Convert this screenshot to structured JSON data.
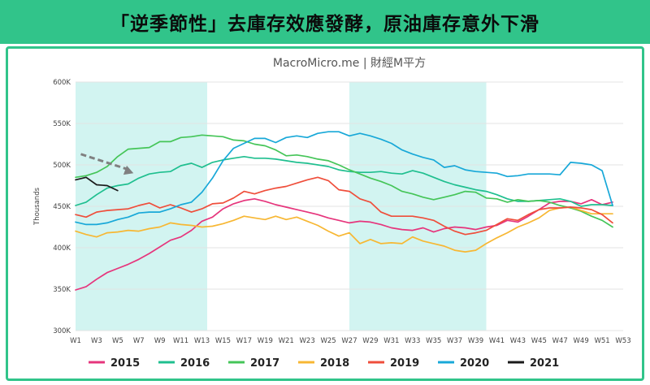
{
  "banner": {
    "title": "「逆季節性」去庫存效應發酵，原油庫存意外下滑",
    "background": "#31c48a"
  },
  "chart_data": {
    "type": "line",
    "source": "MacroMicro.me | 財經M平方",
    "ylabel": "Thousands",
    "xlabel": "",
    "ylim": [
      300,
      600
    ],
    "yticks": [
      300,
      350,
      400,
      450,
      500,
      550,
      600
    ],
    "ytick_labels": [
      "300K",
      "350K",
      "400K",
      "450K",
      "500K",
      "550K",
      "600K"
    ],
    "xlim": [
      1,
      53
    ],
    "xtick_labels": [
      "W1",
      "W3",
      "W5",
      "W7",
      "W9",
      "W11",
      "W13",
      "W15",
      "W17",
      "W19",
      "W21",
      "W23",
      "W25",
      "W27",
      "W29",
      "W31",
      "W33",
      "W35",
      "W37",
      "W39",
      "W41",
      "W43",
      "W45",
      "W47",
      "W49",
      "W51",
      "W53"
    ],
    "shaded_week_ranges": [
      [
        1,
        13.5
      ],
      [
        27,
        40
      ]
    ],
    "shade_color": "#d2f4f1",
    "grid": true,
    "legend_position": "bottom",
    "annotation": {
      "type": "dashed-arrow",
      "from": [
        1.5,
        513
      ],
      "to": [
        6.5,
        490
      ],
      "color": "#808080"
    },
    "series": [
      {
        "name": "2015",
        "color": "#e6357c",
        "values": [
          349,
          353,
          362,
          370,
          375,
          380,
          386,
          393,
          401,
          409,
          413,
          421,
          432,
          437,
          447,
          453,
          457,
          459,
          456,
          452,
          449,
          446,
          443,
          440,
          436,
          433,
          430,
          432,
          431,
          428,
          424,
          422,
          421,
          424,
          419,
          423,
          425,
          424,
          422,
          425,
          427,
          433,
          431,
          438,
          446,
          454,
          456,
          456,
          453,
          458,
          452,
          455
        ]
      },
      {
        "name": "2016",
        "color": "#1fbf8f",
        "values": [
          451,
          455,
          464,
          472,
          475,
          477,
          484,
          489,
          491,
          492,
          499,
          502,
          497,
          503,
          506,
          508,
          510,
          508,
          508,
          507,
          505,
          503,
          502,
          500,
          498,
          494,
          492,
          491,
          491,
          492,
          490,
          489,
          493,
          490,
          485,
          480,
          476,
          473,
          470,
          468,
          464,
          459,
          456,
          456,
          457,
          458,
          459,
          456,
          450,
          452,
          452,
          451
        ]
      },
      {
        "name": "2017",
        "color": "#45c558",
        "values": [
          485,
          487,
          491,
          498,
          510,
          519,
          520,
          521,
          528,
          528,
          533,
          534,
          536,
          535,
          534,
          530,
          529,
          525,
          523,
          518,
          511,
          512,
          510,
          507,
          505,
          500,
          494,
          489,
          484,
          480,
          475,
          468,
          465,
          461,
          458,
          461,
          464,
          468,
          467,
          460,
          459,
          455,
          458,
          456,
          457,
          455,
          451,
          448,
          444,
          438,
          433,
          425
        ]
      },
      {
        "name": "2018",
        "color": "#f7b733",
        "values": [
          420,
          416,
          413,
          418,
          419,
          421,
          420,
          423,
          425,
          430,
          428,
          427,
          425,
          426,
          429,
          433,
          438,
          436,
          434,
          438,
          434,
          437,
          432,
          427,
          420,
          414,
          418,
          405,
          410,
          405,
          406,
          405,
          413,
          408,
          405,
          402,
          397,
          395,
          397,
          405,
          412,
          418,
          425,
          430,
          436,
          445,
          448,
          449,
          445,
          441,
          441,
          441
        ]
      },
      {
        "name": "2019",
        "color": "#ef4e3b",
        "values": [
          440,
          437,
          443,
          445,
          446,
          447,
          451,
          454,
          448,
          452,
          448,
          443,
          447,
          453,
          454,
          460,
          468,
          465,
          469,
          472,
          474,
          478,
          482,
          485,
          481,
          470,
          468,
          459,
          455,
          443,
          438,
          438,
          438,
          436,
          433,
          426,
          420,
          416,
          418,
          421,
          428,
          435,
          433,
          440,
          446,
          448,
          448,
          449,
          448,
          446,
          440,
          430
        ]
      },
      {
        "name": "2020",
        "color": "#18a8d8",
        "values": [
          431,
          428,
          428,
          430,
          434,
          437,
          442,
          443,
          443,
          447,
          452,
          455,
          467,
          484,
          505,
          520,
          526,
          532,
          532,
          527,
          533,
          535,
          533,
          538,
          540,
          540,
          535,
          538,
          535,
          531,
          526,
          518,
          513,
          509,
          506,
          497,
          499,
          494,
          492,
          491,
          490,
          486,
          487,
          489,
          489,
          489,
          488,
          503,
          502,
          500,
          493,
          451
        ]
      },
      {
        "name": "2021",
        "color": "#1a1a1a",
        "values": [
          482,
          485,
          476,
          475,
          469
        ]
      }
    ]
  }
}
